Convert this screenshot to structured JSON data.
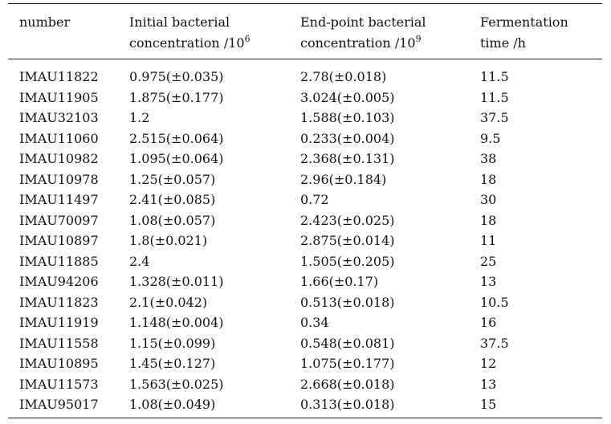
{
  "table": {
    "headers": {
      "number": "number",
      "initial_line1": "Initial bacterial",
      "initial_line2": "concentration /10",
      "initial_exp": "6",
      "end_line1": "End-point bacterial",
      "end_line2": "concentration /10",
      "end_exp": "9",
      "time_line1": "Fermentation",
      "time_line2": "time /h"
    },
    "rows": [
      {
        "number": "IMAU11822",
        "initial": "0.975(±0.035)",
        "end": "2.78(±0.018)",
        "time": "11.5"
      },
      {
        "number": "IMAU11905",
        "initial": "1.875(±0.177)",
        "end": "3.024(±0.005)",
        "time": "11.5"
      },
      {
        "number": "IMAU32103",
        "initial": "1.2",
        "end": "1.588(±0.103)",
        "time": "37.5"
      },
      {
        "number": "IMAU11060",
        "initial": "2.515(±0.064)",
        "end": "0.233(±0.004)",
        "time": "9.5"
      },
      {
        "number": "IMAU10982",
        "initial": "1.095(±0.064)",
        "end": "2.368(±0.131)",
        "time": "38"
      },
      {
        "number": "IMAU10978",
        "initial": "1.25(±0.057)",
        "end": "2.96(±0.184)",
        "time": "18"
      },
      {
        "number": "IMAU11497",
        "initial": "2.41(±0.085)",
        "end": "0.72",
        "time": "30"
      },
      {
        "number": "IMAU70097",
        "initial": "1.08(±0.057)",
        "end": "2.423(±0.025)",
        "time": "18"
      },
      {
        "number": "IMAU10897",
        "initial": "1.8(±0.021)",
        "end": "2.875(±0.014)",
        "time": "11"
      },
      {
        "number": "IMAU11885",
        "initial": "2.4",
        "end": "1.505(±0.205)",
        "time": "25"
      },
      {
        "number": "IMAU94206",
        "initial": "1.328(±0.011)",
        "end": "1.66(±0.17)",
        "time": "13"
      },
      {
        "number": "IMAU11823",
        "initial": "2.1(±0.042)",
        "end": "0.513(±0.018)",
        "time": "10.5"
      },
      {
        "number": "IMAU11919",
        "initial": "1.148(±0.004)",
        "end": "0.34",
        "time": "16"
      },
      {
        "number": "IMAU11558",
        "initial": "1.15(±0.099)",
        "end": "0.548(±0.081)",
        "time": "37.5"
      },
      {
        "number": "IMAU10895",
        "initial": "1.45(±0.127)",
        "end": "1.075(±0.177)",
        "time": "12"
      },
      {
        "number": "IMAU11573",
        "initial": "1.563(±0.025)",
        "end": "2.668(±0.018)",
        "time": "13"
      },
      {
        "number": "IMAU95017",
        "initial": "1.08(±0.049)",
        "end": "0.313(±0.018)",
        "time": "15"
      }
    ]
  }
}
